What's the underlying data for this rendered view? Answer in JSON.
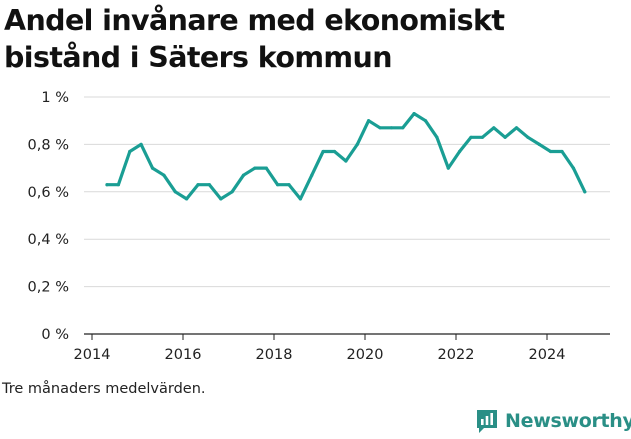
{
  "title": "Andel invånare med ekonomiskt bistånd i Säters kommun",
  "note": "Tre månaders medelvärden.",
  "brand": "Newsworthy",
  "colors": {
    "line": "#1a9e94",
    "grid": "#d9d9d9",
    "brand": "#2a8f86"
  },
  "chart_data": {
    "type": "line",
    "xlim": [
      2014,
      2025.5
    ],
    "ylim": [
      0,
      1
    ],
    "x_ticks": [
      2014,
      2016,
      2018,
      2020,
      2022,
      2024
    ],
    "x_tick_labels": [
      "2014",
      "2016",
      "2018",
      "2020",
      "2022",
      "2024"
    ],
    "y_ticks": [
      0,
      0.2,
      0.4,
      0.6,
      0.8,
      1
    ],
    "y_tick_labels": [
      "0 %",
      "0,2 %",
      "0,4 %",
      "0,6 %",
      "0,8 %",
      "1 %"
    ],
    "grid": "horizontal",
    "series": [
      {
        "x": [
          2014.33,
          2014.58,
          2014.83,
          2015.08,
          2015.33,
          2015.58,
          2015.83,
          2016.08,
          2016.33,
          2016.58,
          2016.83,
          2017.08,
          2017.33,
          2017.58,
          2017.83,
          2018.08,
          2018.33,
          2018.58,
          2018.83,
          2019.08,
          2019.33,
          2019.58,
          2019.83,
          2020.08,
          2020.33,
          2020.58,
          2020.83,
          2021.08,
          2021.33,
          2021.58,
          2021.83,
          2022.08,
          2022.33,
          2022.58,
          2022.83,
          2023.08,
          2023.33,
          2023.58,
          2023.83,
          2024.08,
          2024.33,
          2024.58,
          2024.83
        ],
        "y": [
          0.63,
          0.63,
          0.77,
          0.8,
          0.7,
          0.67,
          0.6,
          0.57,
          0.63,
          0.63,
          0.57,
          0.6,
          0.67,
          0.7,
          0.7,
          0.63,
          0.63,
          0.57,
          0.67,
          0.77,
          0.77,
          0.73,
          0.8,
          0.9,
          0.87,
          0.87,
          0.87,
          0.93,
          0.9,
          0.83,
          0.7,
          0.77,
          0.83,
          0.83,
          0.87,
          0.83,
          0.87,
          0.83,
          0.8,
          0.77,
          0.77,
          0.7,
          0.6
        ]
      }
    ]
  }
}
